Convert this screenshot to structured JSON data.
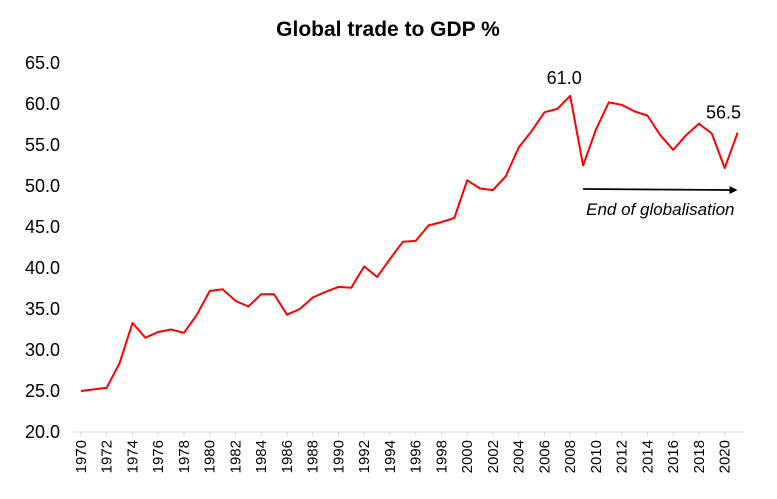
{
  "chart_data": {
    "type": "line",
    "title": "Global trade to GDP %",
    "xlabel": "",
    "ylabel": "",
    "ylim": [
      20,
      65
    ],
    "yticks": [
      "20.0",
      "25.0",
      "30.0",
      "35.0",
      "40.0",
      "45.0",
      "50.0",
      "55.0",
      "60.0",
      "65.0"
    ],
    "xticks": [
      1970,
      1972,
      1974,
      1976,
      1978,
      1980,
      1982,
      1984,
      1986,
      1988,
      1990,
      1992,
      1994,
      1996,
      1998,
      2000,
      2002,
      2004,
      2006,
      2008,
      2010,
      2012,
      2014,
      2016,
      2018,
      2020
    ],
    "grid": false,
    "legend": "none",
    "color": "#ff0000",
    "series": [
      {
        "x": [
          1970,
          1971,
          1972,
          1973,
          1974,
          1975,
          1976,
          1977,
          1978,
          1979,
          1980,
          1981,
          1982,
          1983,
          1984,
          1985,
          1986,
          1987,
          1988,
          1989,
          1990,
          1991,
          1992,
          1993,
          1994,
          1995,
          1996,
          1997,
          1998,
          1999,
          2000,
          2001,
          2002,
          2003,
          2004,
          2005,
          2006,
          2007,
          2008,
          2009,
          2010,
          2011,
          2012,
          2013,
          2014,
          2015,
          2016,
          2017,
          2018,
          2019,
          2020,
          2021
        ],
        "values": [
          25.0,
          25.2,
          25.4,
          28.4,
          33.3,
          31.5,
          32.2,
          32.5,
          32.1,
          34.3,
          37.2,
          37.4,
          36.0,
          35.3,
          36.8,
          36.8,
          34.3,
          35.0,
          36.4,
          37.1,
          37.7,
          37.6,
          40.2,
          38.9,
          41.1,
          43.2,
          43.3,
          45.2,
          45.6,
          46.1,
          50.7,
          49.7,
          49.5,
          51.2,
          54.7,
          56.7,
          59.0,
          59.4,
          61.0,
          52.5,
          56.9,
          60.2,
          59.9,
          59.1,
          58.6,
          56.2,
          54.4,
          56.2,
          57.6,
          56.4,
          52.2,
          56.5
        ]
      }
    ],
    "annotations": {
      "peak_label": "61.0",
      "end_label": "56.5",
      "arrow_text": "End of globalisation",
      "arrow_from": 2009,
      "arrow_to": 2021
    }
  }
}
